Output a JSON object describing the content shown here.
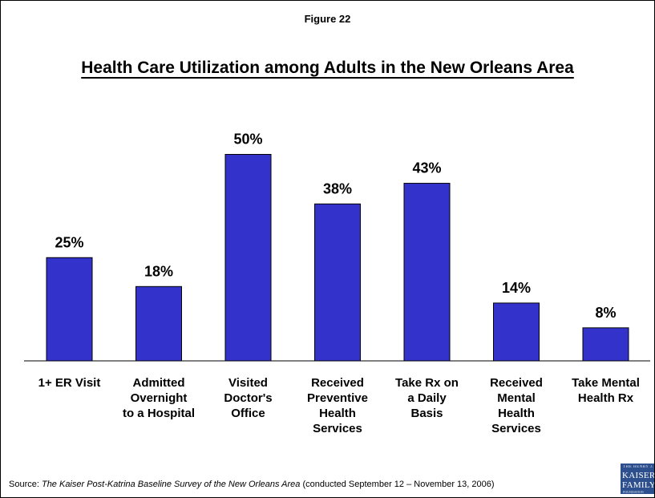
{
  "figure_label": "Figure 22",
  "source": {
    "prefix": "Source: ",
    "title": "The Kaiser Post-Katrina Baseline Survey of the New Orleans Area",
    "suffix": " (conducted September 12 – November 13, 2006)"
  },
  "logo": {
    "small_top": "THE HENRY J.",
    "line1": "KAISER",
    "line2": "FAMILY",
    "small_bottom": "FOUNDATION"
  },
  "colors": {
    "bar": "#3333cc",
    "bar_stroke": "#000000"
  },
  "chart_data": {
    "type": "bar",
    "title": "Health Care Utilization among Adults in the New Orleans Area",
    "xlabel": "",
    "ylabel": "",
    "ylim": [
      0,
      60
    ],
    "grid": false,
    "legend": "none",
    "categories": [
      [
        "1+ ER Visit"
      ],
      [
        "Admitted",
        "Overnight",
        "to a Hospital"
      ],
      [
        "Visited",
        "Doctor's",
        "Office"
      ],
      [
        "Received",
        "Preventive",
        "Health",
        "Services"
      ],
      [
        "Take Rx on",
        "a Daily",
        "Basis"
      ],
      [
        "Received",
        "Mental",
        "Health",
        "Services"
      ],
      [
        "Take Mental",
        "Health Rx"
      ]
    ],
    "values": [
      25,
      18,
      50,
      38,
      43,
      14,
      8
    ],
    "data_labels": [
      "25%",
      "18%",
      "50%",
      "38%",
      "43%",
      "14%",
      "8%"
    ]
  }
}
